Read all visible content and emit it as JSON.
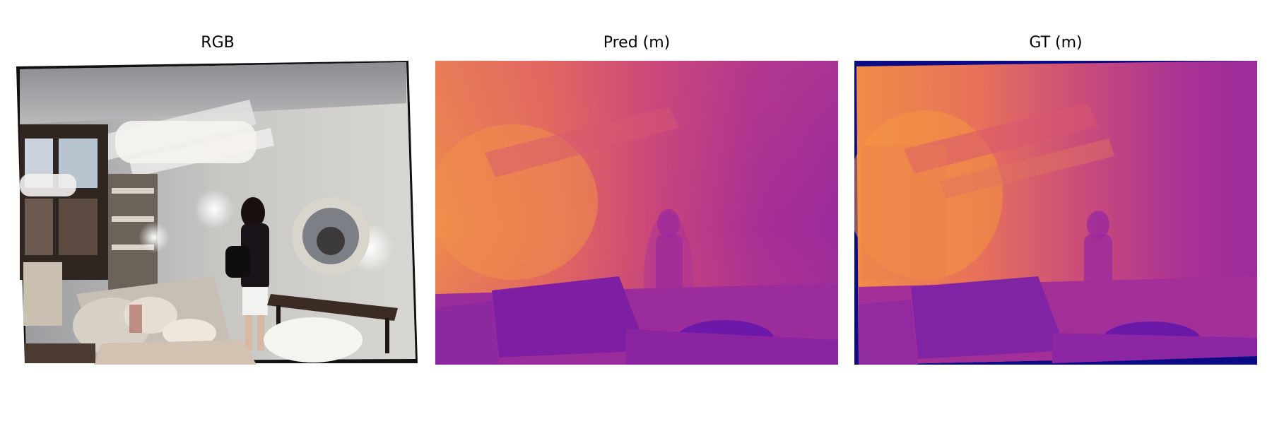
{
  "panels": [
    {
      "title": "RGB"
    },
    {
      "title": "Pred (m)"
    },
    {
      "title": "GT (m)"
    }
  ],
  "colors": {
    "background": "#ffffff",
    "near_depth": "#f08a4b",
    "far_depth": "#8a1ea7",
    "deepest": "#5a10a8",
    "invalid_border": "#0c0b86"
  }
}
